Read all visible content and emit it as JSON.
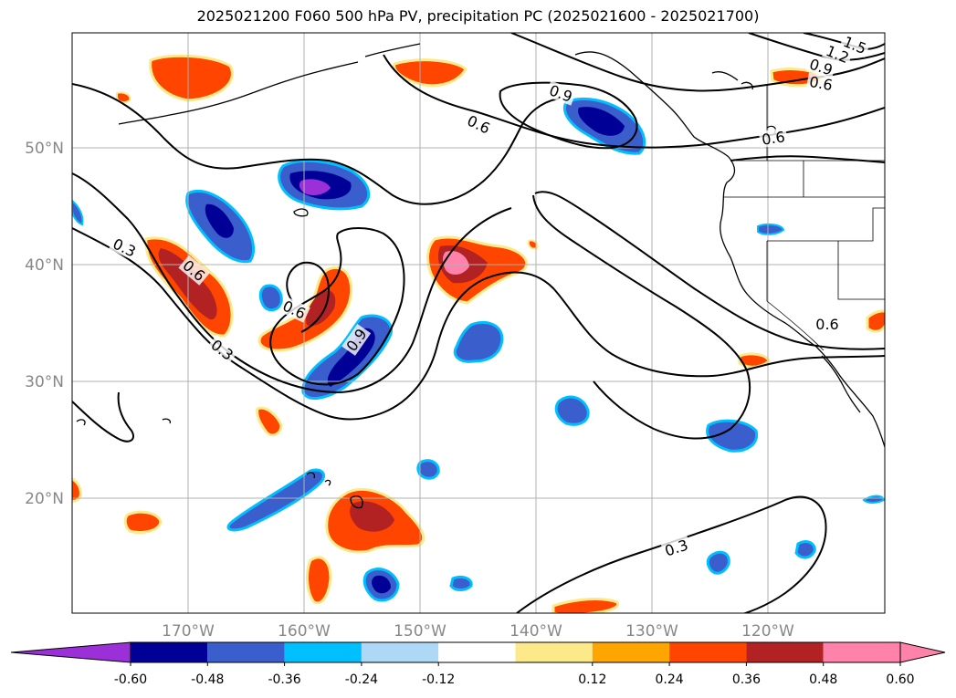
{
  "title": "2025021200 F060 500 hPa PV, precipitation PC (2025021600 - 2025021700)",
  "map": {
    "lat_labels": [
      {
        "name": "lat-label-50n",
        "text": "50°N"
      },
      {
        "name": "lat-label-40n",
        "text": "40°N"
      },
      {
        "name": "lat-label-30n",
        "text": "30°N"
      },
      {
        "name": "lat-label-20n",
        "text": "20°N"
      }
    ],
    "lon_labels": [
      {
        "name": "lon-label-170w",
        "text": "170°W"
      },
      {
        "name": "lon-label-160w",
        "text": "160°W"
      },
      {
        "name": "lon-label-150w",
        "text": "150°W"
      },
      {
        "name": "lon-label-140w",
        "text": "140°W"
      },
      {
        "name": "lon-label-130w",
        "text": "130°W"
      },
      {
        "name": "lon-label-120w",
        "text": "120°W"
      }
    ],
    "contour_labels": [
      {
        "name": "contour-label-1-5",
        "text": "1.5"
      },
      {
        "name": "contour-label-1-2",
        "text": "1.2"
      },
      {
        "name": "contour-label-0-9-ne",
        "text": "0.9"
      },
      {
        "name": "contour-label-0-6-ne",
        "text": "0.6"
      },
      {
        "name": "contour-label-0-9-north",
        "text": "0.9"
      },
      {
        "name": "contour-label-0-6-north",
        "text": "0.6"
      },
      {
        "name": "contour-label-0-6-coast",
        "text": "0.6"
      },
      {
        "name": "contour-label-0-3-west",
        "text": "0.3"
      },
      {
        "name": "contour-label-0-6-west",
        "text": "0.6"
      },
      {
        "name": "contour-label-0-3-southwest",
        "text": "0.3"
      },
      {
        "name": "contour-label-0-6-center",
        "text": "0.6"
      },
      {
        "name": "contour-label-0-9-center",
        "text": "0.9"
      },
      {
        "name": "contour-label-0-6-california",
        "text": "0.6"
      },
      {
        "name": "contour-label-0-3-south",
        "text": "0.3"
      }
    ]
  },
  "colorbar": {
    "colors": [
      "#9b30d9",
      "#000096",
      "#3a5fcd",
      "#00bfff",
      "#add8f6",
      "#ffffff",
      "#fce98a",
      "#ffa500",
      "#ff4500",
      "#b22222",
      "#ff82ab"
    ],
    "ticks": [
      "-0.60",
      "-0.48",
      "-0.36",
      "-0.24",
      "-0.12",
      "0.12",
      "0.24",
      "0.36",
      "0.48",
      "0.60"
    ]
  }
}
